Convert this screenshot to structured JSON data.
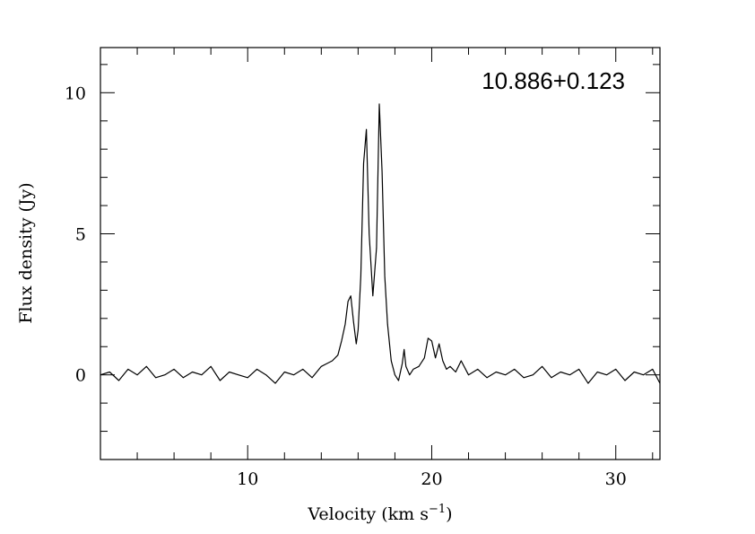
{
  "chart_data": {
    "type": "line",
    "title": "",
    "xlabel": "Velocity (km s",
    "xlabel_sup": "−1",
    "xlabel_close": ")",
    "ylabel": "Flux density (Jy)",
    "annotation": "10.886+0.123",
    "xlim": [
      2.0,
      32.4
    ],
    "ylim": [
      -3.0,
      11.6
    ],
    "x_ticks": [
      10,
      20,
      30
    ],
    "x_tick_labels": [
      "10",
      "20",
      "30"
    ],
    "y_ticks": [
      0,
      5,
      10
    ],
    "y_tick_labels": [
      "0",
      "5",
      "10"
    ],
    "grid": false,
    "legend": "none",
    "line_color": "#000000",
    "series": [
      {
        "x": [
          2.0,
          2.5,
          3.0,
          3.5,
          4.0,
          4.5,
          5.0,
          5.5,
          6.0,
          6.5,
          7.0,
          7.5,
          8.0,
          8.5,
          9.0,
          9.5,
          10.0,
          10.5,
          11.0,
          11.5,
          12.0,
          12.5,
          13.0,
          13.5,
          14.0,
          14.3,
          14.6,
          14.9,
          15.1,
          15.3,
          15.45,
          15.6,
          15.75,
          15.9,
          16.0,
          16.15,
          16.3,
          16.45,
          16.6,
          16.8,
          17.0,
          17.15,
          17.3,
          17.45,
          17.6,
          17.8,
          18.0,
          18.2,
          18.4,
          18.5,
          18.6,
          18.8,
          19.0,
          19.3,
          19.6,
          19.8,
          20.0,
          20.2,
          20.4,
          20.6,
          20.8,
          21.0,
          21.3,
          21.6,
          22.0,
          22.5,
          23.0,
          23.5,
          24.0,
          24.5,
          25.0,
          25.5,
          26.0,
          26.5,
          27.0,
          27.5,
          28.0,
          28.5,
          29.0,
          29.5,
          30.0,
          30.5,
          31.0,
          31.5,
          32.0,
          32.4
        ],
        "y": [
          0.0,
          0.1,
          -0.2,
          0.2,
          0.0,
          0.3,
          -0.1,
          0.0,
          0.2,
          -0.1,
          0.1,
          0.0,
          0.3,
          -0.2,
          0.1,
          0.0,
          -0.1,
          0.2,
          0.0,
          -0.3,
          0.1,
          0.0,
          0.2,
          -0.1,
          0.3,
          0.4,
          0.5,
          0.7,
          1.2,
          1.8,
          2.6,
          2.8,
          1.9,
          1.1,
          1.6,
          3.5,
          7.5,
          8.7,
          5.0,
          2.8,
          4.5,
          9.6,
          7.2,
          3.5,
          1.8,
          0.5,
          0.0,
          -0.2,
          0.4,
          0.9,
          0.3,
          0.0,
          0.2,
          0.3,
          0.6,
          1.3,
          1.2,
          0.6,
          1.1,
          0.5,
          0.2,
          0.3,
          0.1,
          0.5,
          0.0,
          0.2,
          -0.1,
          0.1,
          0.0,
          0.2,
          -0.1,
          0.0,
          0.3,
          -0.1,
          0.1,
          0.0,
          0.2,
          -0.3,
          0.1,
          0.0,
          0.2,
          -0.2,
          0.1,
          0.0,
          0.2,
          -0.3
        ]
      }
    ]
  }
}
